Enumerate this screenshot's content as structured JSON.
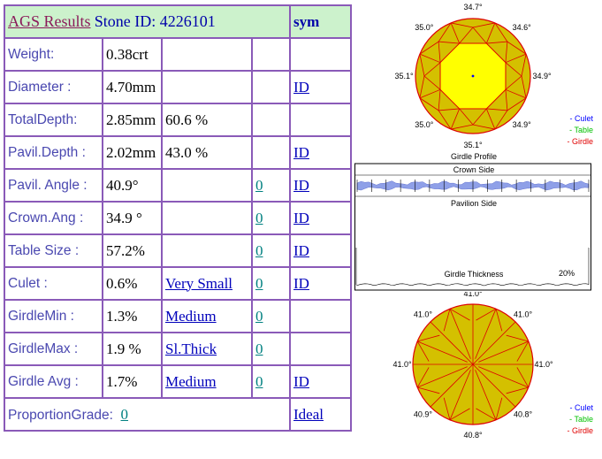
{
  "header": {
    "title": "AGS  Results",
    "stone_id": "Stone ID:  4226101",
    "sym": "sym"
  },
  "rows": [
    {
      "label": "Weight:",
      "value": "0.38crt",
      "extra": "",
      "grade": "",
      "link": ""
    },
    {
      "label": "Diameter :",
      "value": "4.70mm",
      "extra": "",
      "grade": "",
      "link": "ID"
    },
    {
      "label": "TotalDepth:",
      "value": "2.85mm",
      "extra": "60.6 %",
      "grade": "",
      "link": ""
    },
    {
      "label": "Pavil.Depth :",
      "value": "2.02mm",
      "extra": "43.0 %",
      "grade": "",
      "link": "ID"
    },
    {
      "label": "Pavil. Angle :",
      "value": "40.9°",
      "extra": "",
      "grade": "0",
      "link": "ID "
    },
    {
      "label": "Crown.Ang :",
      "value": "34.9 °",
      "extra": "",
      "grade": "0",
      "link": "ID"
    },
    {
      "label": "Table Size :",
      "value": "57.2%",
      "extra": "",
      "grade": "0",
      "link": "ID"
    },
    {
      "label": "Culet :",
      "value": "0.6%",
      "extra": "Very Small",
      "grade": "0",
      "link": "ID"
    },
    {
      "label": "GirdleMin :",
      "value": "1.3%",
      "extra": "Medium",
      "grade": "0",
      "link": ""
    },
    {
      "label": "GirdleMax :",
      "value": "1.9 %",
      "extra": "Sl.Thick ",
      "grade": "0",
      "link": ""
    },
    {
      "label": "Girdle Avg :",
      "value": "1.7%",
      "extra": "Medium ",
      "grade": "0 ",
      "link": "ID "
    }
  ],
  "footer": {
    "label": "ProportionGrade:",
    "grade": "0",
    "result": "Ideal "
  },
  "top_view": {
    "angles": [
      "34.7°",
      "34.6°",
      "34.9°",
      "34.9°",
      "35.1°",
      "35.0°",
      "35.1°",
      "35.0°"
    ],
    "legend": [
      "- Culet",
      "- Table",
      "- Girdle"
    ],
    "colors": {
      "culet": "#0000ff",
      "table": "#00c000",
      "girdle": "#e00000",
      "crown": "#d4c000",
      "table_fill": "#ffff00",
      "facet_line": "#dd0000"
    }
  },
  "profile": {
    "title": "Girdle Profile",
    "crown_label": "Crown Side",
    "pavilion_label": "Pavilion Side",
    "thickness_label": "Girdle Thickness",
    "thickness_value": "20%"
  },
  "bottom_view": {
    "angles": [
      "41.0°",
      "41.0°",
      "41.0°",
      "40.8°",
      "40.8°",
      "40.9°",
      "41.0°",
      "41.0°"
    ],
    "legend": [
      "- Culet",
      "- Table",
      "- Girdle"
    ]
  }
}
